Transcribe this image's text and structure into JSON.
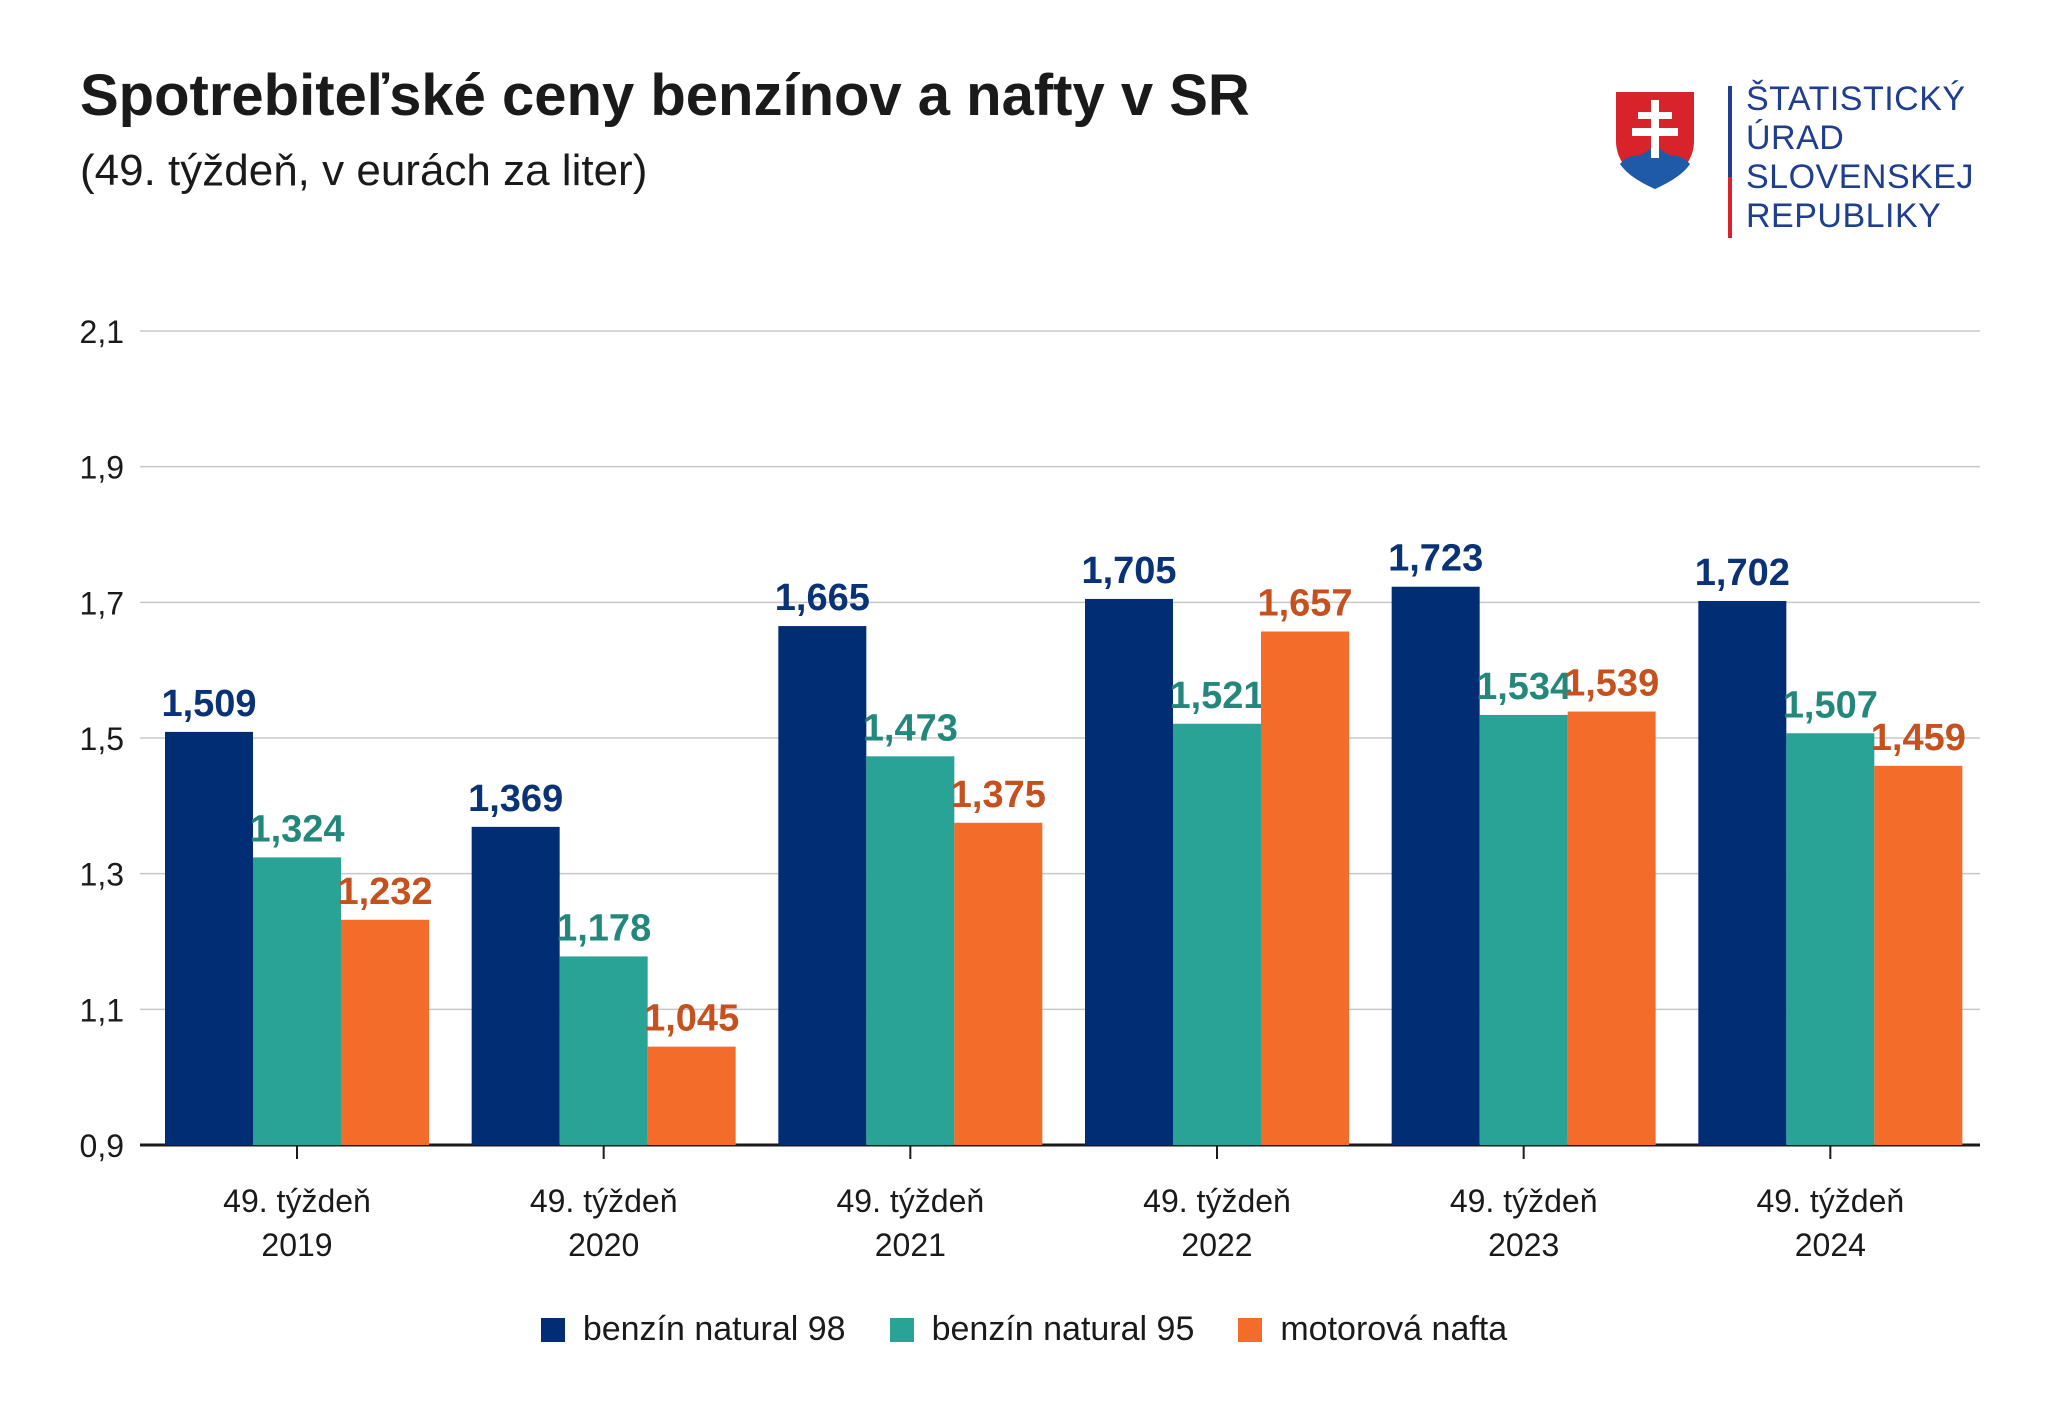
{
  "title": "Spotrebiteľské ceny benzínov a nafty v SR",
  "subtitle": "(49. týždeň, v eurách za liter)",
  "logo": {
    "lines": [
      "ŠTATISTICKÝ",
      "ÚRAD",
      "SLOVENSKEJ",
      "REPUBLIKY"
    ],
    "colors": {
      "text": "#1f3e8f",
      "shield_red": "#d8232a",
      "shield_blue": "#1f5aa8",
      "bar_top": "#1f3e8f",
      "bar_bottom": "#d8232a"
    }
  },
  "chart_data": {
    "type": "bar",
    "categories": [
      [
        "49. týždeň",
        "2019"
      ],
      [
        "49. týždeň",
        "2020"
      ],
      [
        "49. týždeň",
        "2021"
      ],
      [
        "49. týždeň",
        "2022"
      ],
      [
        "49. týždeň",
        "2023"
      ],
      [
        "49. týždeň",
        "2024"
      ]
    ],
    "series": [
      {
        "name": "benzín natural 98",
        "color": "#002d73",
        "label_color": "#0a3277",
        "values": [
          1.509,
          1.369,
          1.665,
          1.705,
          1.723,
          1.702
        ],
        "labels": [
          "1,509",
          "1,369",
          "1,665",
          "1,705",
          "1,723",
          "1,702"
        ]
      },
      {
        "name": "benzín natural 95",
        "color": "#29a396",
        "label_color": "#23877c",
        "values": [
          1.324,
          1.178,
          1.473,
          1.521,
          1.534,
          1.507
        ],
        "labels": [
          "1,324",
          "1,178",
          "1,473",
          "1,521",
          "1,534",
          "1,507"
        ]
      },
      {
        "name": "motorová nafta",
        "color": "#f36c2a",
        "label_color": "#c4511e",
        "values": [
          1.232,
          1.045,
          1.375,
          1.657,
          1.539,
          1.459
        ],
        "labels": [
          "1,232",
          "1,045",
          "1,375",
          "1,657",
          "1,539",
          "1,459"
        ]
      }
    ],
    "ylim": [
      0.9,
      2.1
    ],
    "yticks": [
      0.9,
      1.1,
      1.3,
      1.5,
      1.7,
      1.9,
      2.1
    ],
    "ytick_labels": [
      "0,9",
      "1,1",
      "1,3",
      "1,5",
      "1,7",
      "1,9",
      "2,1"
    ],
    "xlabel": "",
    "ylabel": "",
    "grid": true,
    "legend_position": "bottom"
  }
}
